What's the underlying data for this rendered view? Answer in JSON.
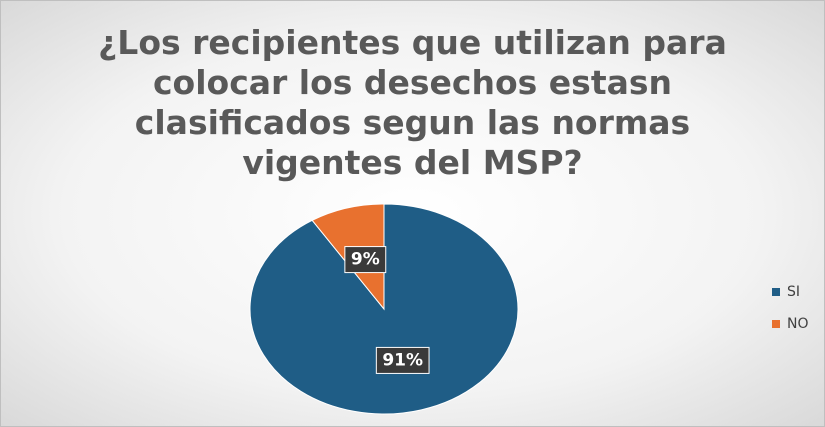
{
  "chart_data": {
    "type": "pie",
    "title": "¿Los recipientes que utilizan para\ncolocar  los desechos estasn\nclasificados segun  las normas\nvigentes  del MSP?",
    "categories": [
      "SI",
      "NO"
    ],
    "values": [
      91,
      9
    ],
    "value_labels": [
      "91%",
      "9%"
    ],
    "colors": [
      "#1f5d86",
      "#e8712f"
    ],
    "legend": "right"
  }
}
